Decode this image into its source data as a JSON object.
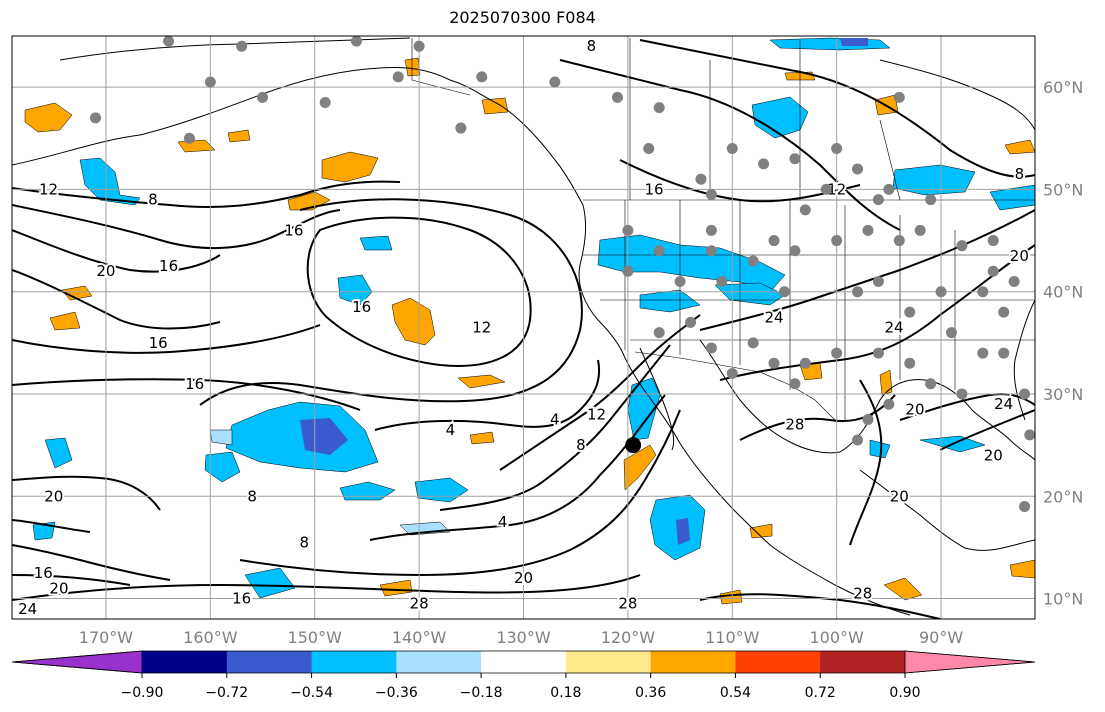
{
  "title": "2025070300 F084",
  "map": {
    "lon_range": [
      -179,
      -81
    ],
    "lat_range": [
      8,
      65
    ],
    "lon_ticks": [
      {
        "value": -170,
        "label": "170°W"
      },
      {
        "value": -160,
        "label": "160°W"
      },
      {
        "value": -150,
        "label": "150°W"
      },
      {
        "value": -140,
        "label": "140°W"
      },
      {
        "value": -130,
        "label": "130°W"
      },
      {
        "value": -120,
        "label": "120°W"
      },
      {
        "value": -110,
        "label": "110°W"
      },
      {
        "value": -100,
        "label": "100°W"
      },
      {
        "value": -90,
        "label": "90°W"
      }
    ],
    "lat_ticks": [
      {
        "value": 60,
        "label": "60°N"
      },
      {
        "value": 50,
        "label": "50°N"
      },
      {
        "value": 40,
        "label": "40°N"
      },
      {
        "value": 30,
        "label": "30°N"
      },
      {
        "value": 20,
        "label": "20°N"
      },
      {
        "value": 10,
        "label": "10°N"
      }
    ],
    "grid": true,
    "marker": {
      "lon": -119.5,
      "lat": 25,
      "color": "#000000"
    }
  },
  "contour_labels": [
    {
      "text": "12",
      "lon": -175.5,
      "lat": 50
    },
    {
      "text": "8",
      "lon": -165.5,
      "lat": 49
    },
    {
      "text": "16",
      "lon": -152,
      "lat": 46
    },
    {
      "text": "20",
      "lon": -170,
      "lat": 42
    },
    {
      "text": "16",
      "lon": -164,
      "lat": 42.5
    },
    {
      "text": "16",
      "lon": -145.5,
      "lat": 38.5
    },
    {
      "text": "12",
      "lon": -134,
      "lat": 36.5
    },
    {
      "text": "16",
      "lon": -165,
      "lat": 35
    },
    {
      "text": "16",
      "lon": -161.5,
      "lat": 31
    },
    {
      "text": "4",
      "lon": -137,
      "lat": 26.5
    },
    {
      "text": "4",
      "lon": -127,
      "lat": 27.5
    },
    {
      "text": "12",
      "lon": -123,
      "lat": 28
    },
    {
      "text": "8",
      "lon": -124.5,
      "lat": 25
    },
    {
      "text": "28",
      "lon": -104,
      "lat": 27
    },
    {
      "text": "20",
      "lon": -175,
      "lat": 20
    },
    {
      "text": "8",
      "lon": -156,
      "lat": 20
    },
    {
      "text": "8",
      "lon": -151,
      "lat": 15.5
    },
    {
      "text": "4",
      "lon": -132,
      "lat": 17.5
    },
    {
      "text": "20",
      "lon": -130,
      "lat": 12
    },
    {
      "text": "28",
      "lon": -140,
      "lat": 9.5
    },
    {
      "text": "28",
      "lon": -120,
      "lat": 9.5
    },
    {
      "text": "16",
      "lon": -176,
      "lat": 12.5
    },
    {
      "text": "20",
      "lon": -174.5,
      "lat": 11
    },
    {
      "text": "24",
      "lon": -177.5,
      "lat": 9
    },
    {
      "text": "16",
      "lon": -157,
      "lat": 10
    },
    {
      "text": "28",
      "lon": -97.5,
      "lat": 10.5
    },
    {
      "text": "8",
      "lon": -123.5,
      "lat": 64
    },
    {
      "text": "16",
      "lon": -117.5,
      "lat": 50
    },
    {
      "text": "12",
      "lon": -100,
      "lat": 50
    },
    {
      "text": "8",
      "lon": -82.5,
      "lat": 51.5
    },
    {
      "text": "20",
      "lon": -82.5,
      "lat": 43.5
    },
    {
      "text": "24",
      "lon": -106,
      "lat": 37.5
    },
    {
      "text": "24",
      "lon": -94.5,
      "lat": 36.5
    },
    {
      "text": "20",
      "lon": -92.5,
      "lat": 28.5
    },
    {
      "text": "24",
      "lon": -84,
      "lat": 29
    },
    {
      "text": "20",
      "lon": -94,
      "lat": 20
    },
    {
      "text": "20",
      "lon": -85,
      "lat": 24
    }
  ],
  "stations": [
    [
      -164,
      64.5
    ],
    [
      -157,
      64
    ],
    [
      -146,
      64.5
    ],
    [
      -140,
      64
    ],
    [
      -134,
      61
    ],
    [
      -127,
      60.5
    ],
    [
      -121,
      59
    ],
    [
      -160,
      60.5
    ],
    [
      -155,
      59
    ],
    [
      -149,
      58.5
    ],
    [
      -142,
      61
    ],
    [
      -171,
      57
    ],
    [
      -162,
      55
    ],
    [
      -136,
      56
    ],
    [
      -118,
      54
    ],
    [
      -117,
      58
    ],
    [
      -113,
      51
    ],
    [
      -112,
      49.5
    ],
    [
      -110,
      54
    ],
    [
      -107,
      52.5
    ],
    [
      -104,
      53
    ],
    [
      -100,
      54
    ],
    [
      -98,
      52
    ],
    [
      -95,
      50
    ],
    [
      -94,
      59
    ],
    [
      -103,
      48
    ],
    [
      -96,
      49
    ],
    [
      -91,
      49
    ],
    [
      -120,
      46
    ],
    [
      -120,
      42
    ],
    [
      -115,
      41
    ],
    [
      -111,
      41
    ],
    [
      -108,
      43
    ],
    [
      -106,
      45
    ],
    [
      -105,
      40
    ],
    [
      -100,
      45
    ],
    [
      -97,
      46
    ],
    [
      -98,
      40
    ],
    [
      -94,
      45
    ],
    [
      -92,
      46
    ],
    [
      -88,
      44.5
    ],
    [
      -85,
      45
    ],
    [
      -83,
      41
    ],
    [
      -96,
      41
    ],
    [
      -93,
      38
    ],
    [
      -90,
      40
    ],
    [
      -86,
      40
    ],
    [
      -84,
      38
    ],
    [
      -89,
      36
    ],
    [
      -86,
      34
    ],
    [
      -84,
      34
    ],
    [
      -88,
      30
    ],
    [
      -91,
      31
    ],
    [
      -93,
      33
    ],
    [
      -96,
      34
    ],
    [
      -100,
      34
    ],
    [
      -103,
      33
    ],
    [
      -106,
      33
    ],
    [
      -110,
      32
    ],
    [
      -112,
      34.5
    ],
    [
      -108,
      35
    ],
    [
      -104,
      31
    ],
    [
      -95,
      29
    ],
    [
      -97,
      27.5
    ],
    [
      -98,
      25.5
    ],
    [
      -82,
      30
    ],
    [
      -81.5,
      26
    ],
    [
      -82,
      19
    ],
    [
      -85,
      42
    ],
    [
      -114,
      37
    ],
    [
      -117,
      36
    ],
    [
      -112,
      44
    ],
    [
      -104,
      44
    ],
    [
      -117,
      44
    ],
    [
      -112,
      46
    ],
    [
      -101,
      50
    ]
  ],
  "colorbar": {
    "colors": [
      "#9932cc",
      "#00008b",
      "#3a5acf",
      "#00bfff",
      "#aadfff",
      "#ffffff",
      "#ffe98a",
      "#ffa500",
      "#ff4000",
      "#b22222",
      "#ff88aa"
    ],
    "tick_labels": [
      "−0.90",
      "−0.72",
      "−0.54",
      "−0.36",
      "−0.18",
      "0.18",
      "0.36",
      "0.54",
      "0.72",
      "0.90"
    ]
  }
}
